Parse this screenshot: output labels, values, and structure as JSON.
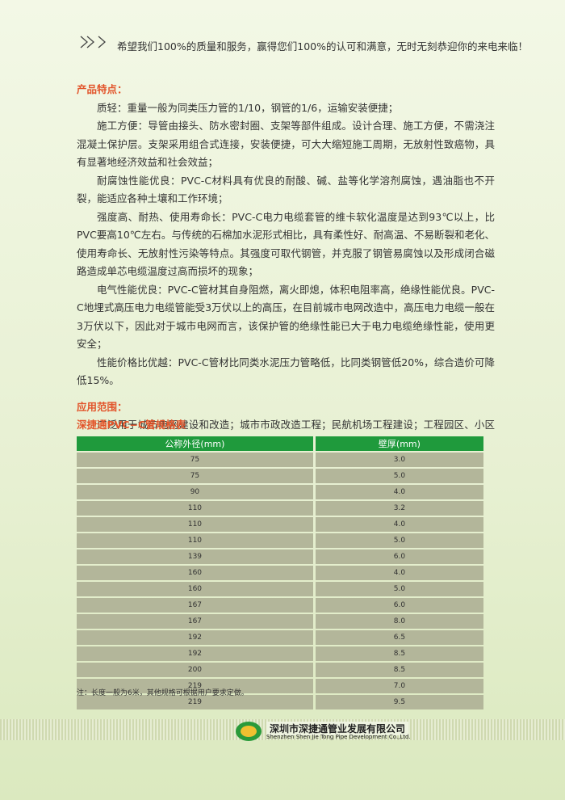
{
  "header": {
    "slogan": "希望我们100%的质量和服务，赢得您们100%的认可和满意，无时无刻恭迎你的来电来临！"
  },
  "features": {
    "heading": "产品特点：",
    "paragraphs": [
      "质轻：重量一般为同类压力管的1/10，钢管的1/6，运输安装便捷；",
      "施工方便：导管由接头、防水密封圈、支架等部件组成。设计合理、施工方便，不需浇注混凝土保护层。支架采用组合式连接，安装便捷，可大大缩短施工周期，无放射性致癌物，具有显著地经济效益和社会效益；",
      "耐腐蚀性能优良：PVC-C材料具有优良的耐酸、碱、盐等化学溶剂腐蚀，遇油脂也不开裂，能适应各种土壤和工作环境；",
      "强度高、耐热、使用寿命长：PVC-C电力电缆套管的维卡软化温度是达到93℃以上，比PVC要高10℃左右。与传统的石棉加水泥形式相比，具有柔性好、耐高温、不易断裂和老化、使用寿命长、无放射性污染等特点。其强度可取代钢管，并克服了钢管易腐蚀以及形成闭合磁路造成单芯电缆温度过高而损坏的现象；",
      "电气性能优良：PVC-C管材其自身阻燃，离火即熄，体积电阻率高，绝缘性能优良。PVC-C地埋式高压电力电缆管能受3万伏以上的高压，在目前城市电网改造中，高压电力电缆一般在3万伏以下，因此对于城市电网而言，该保护管的绝缘性能已大于电力电缆绝缘性能，使用更安全；",
      "性能价格比优越：PVC-C管材比同类水泥压力管略低，比同类钢管低20%，综合造价可降低15%。"
    ]
  },
  "application": {
    "heading": "应用范围：",
    "text": "广泛用于城市电网建设和改造；城市市政改造工程；民航机场工程建设；工程园区、小区工程建设；交通、路桥工程建设；城市路灯电缆敷设。"
  },
  "table": {
    "title": "深捷通PVC−C管规格表",
    "columns": [
      "公称外径(mm)",
      "壁厚(mm)"
    ],
    "rows": [
      [
        "75",
        "3.0"
      ],
      [
        "75",
        "5.0"
      ],
      [
        "90",
        "4.0"
      ],
      [
        "110",
        "3.2"
      ],
      [
        "110",
        "4.0"
      ],
      [
        "110",
        "5.0"
      ],
      [
        "139",
        "6.0"
      ],
      [
        "160",
        "4.0"
      ],
      [
        "160",
        "5.0"
      ],
      [
        "167",
        "6.0"
      ],
      [
        "167",
        "8.0"
      ],
      [
        "192",
        "6.5"
      ],
      [
        "192",
        "8.5"
      ],
      [
        "200",
        "8.5"
      ],
      [
        "219",
        "7.0"
      ],
      [
        "219",
        "9.5"
      ]
    ],
    "note": "注：长度一般为6米，其他规格可根据用户要求定做。"
  },
  "footer": {
    "company_cn": "深圳市深捷通管业发展有限公司",
    "company_en": "Shenzhen Shen Jie Tong Pipe Development Co.,Ltd."
  }
}
